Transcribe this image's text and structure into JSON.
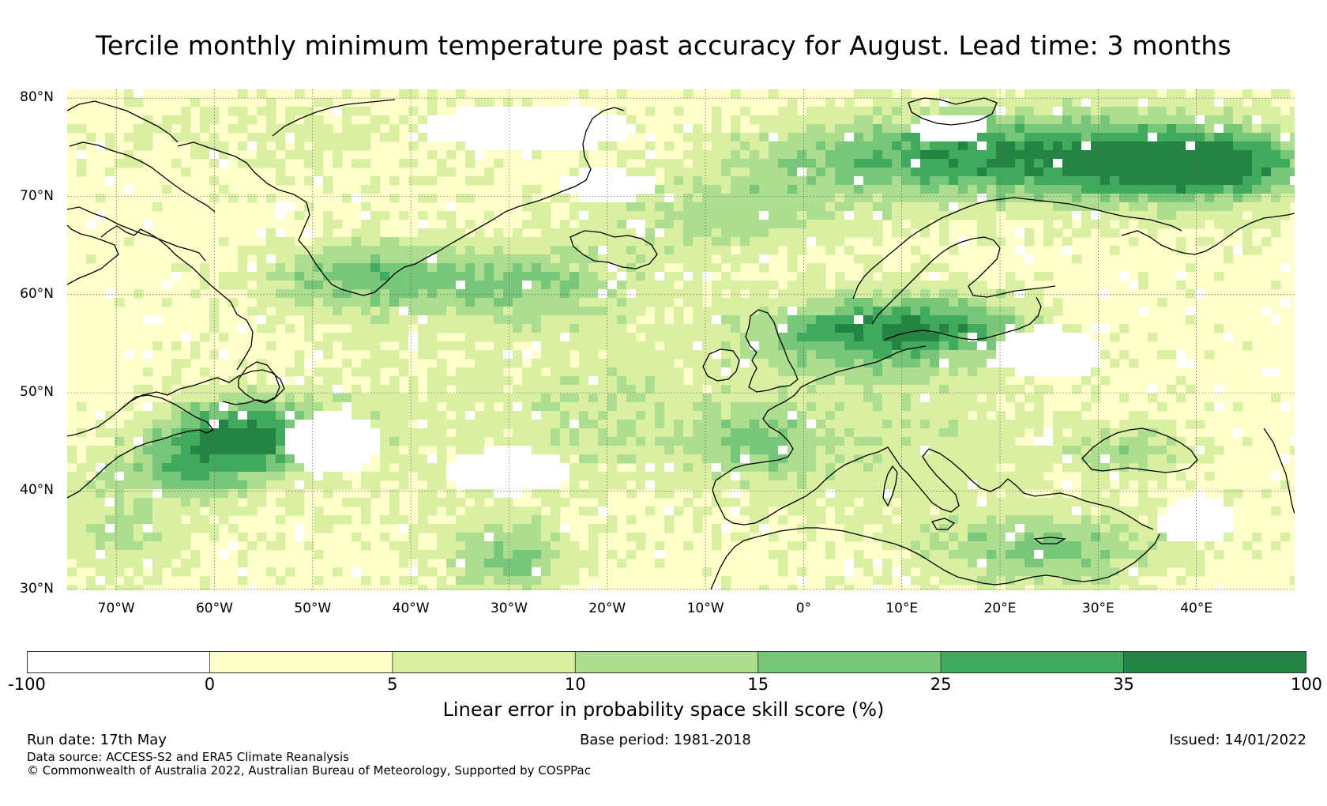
{
  "title": "Tercile monthly minimum temperature past accuracy for August. Lead time: 3 months",
  "map": {
    "lat_labels": [
      {
        "lat": 80,
        "text": "80°N"
      },
      {
        "lat": 70,
        "text": "70°N"
      },
      {
        "lat": 60,
        "text": "60°N"
      },
      {
        "lat": 50,
        "text": "50°N"
      },
      {
        "lat": 40,
        "text": "40°N"
      },
      {
        "lat": 30,
        "text": "30°N"
      }
    ],
    "lon_labels": [
      {
        "lon": -70,
        "text": "70°W"
      },
      {
        "lon": -60,
        "text": "60°W"
      },
      {
        "lon": -50,
        "text": "50°W"
      },
      {
        "lon": -40,
        "text": "40°W"
      },
      {
        "lon": -30,
        "text": "30°W"
      },
      {
        "lon": -20,
        "text": "20°W"
      },
      {
        "lon": -10,
        "text": "10°W"
      },
      {
        "lon": 0,
        "text": "0°"
      },
      {
        "lon": 10,
        "text": "10°E"
      },
      {
        "lon": 20,
        "text": "20°E"
      },
      {
        "lon": 30,
        "text": "30°E"
      },
      {
        "lon": 40,
        "text": "40°E"
      }
    ],
    "lon_range": [
      -75,
      50
    ],
    "lat_range": [
      29.9,
      80.9
    ],
    "gridlines": true
  },
  "colorbar": {
    "ticks": [
      "-100",
      "0",
      "5",
      "10",
      "15",
      "25",
      "35",
      "100"
    ],
    "colors": [
      "#ffffff",
      "#ffffcc",
      "#d9f0a3",
      "#addd8e",
      "#78c679",
      "#41ab5d",
      "#238443"
    ],
    "label": "Linear error in probability space skill score (%)"
  },
  "footer": {
    "run_date": "Run date: 17th May",
    "base_period": "Base period: 1981-2018",
    "issued": "Issued: 14/01/2022",
    "data_source": "Data source: ACCESS-S2 and ERA5 Climate Reanalysis",
    "copyright": "© Commonwealth of Australia 2022, Australian Bureau of Meteorology, Supported by COSPPac"
  }
}
